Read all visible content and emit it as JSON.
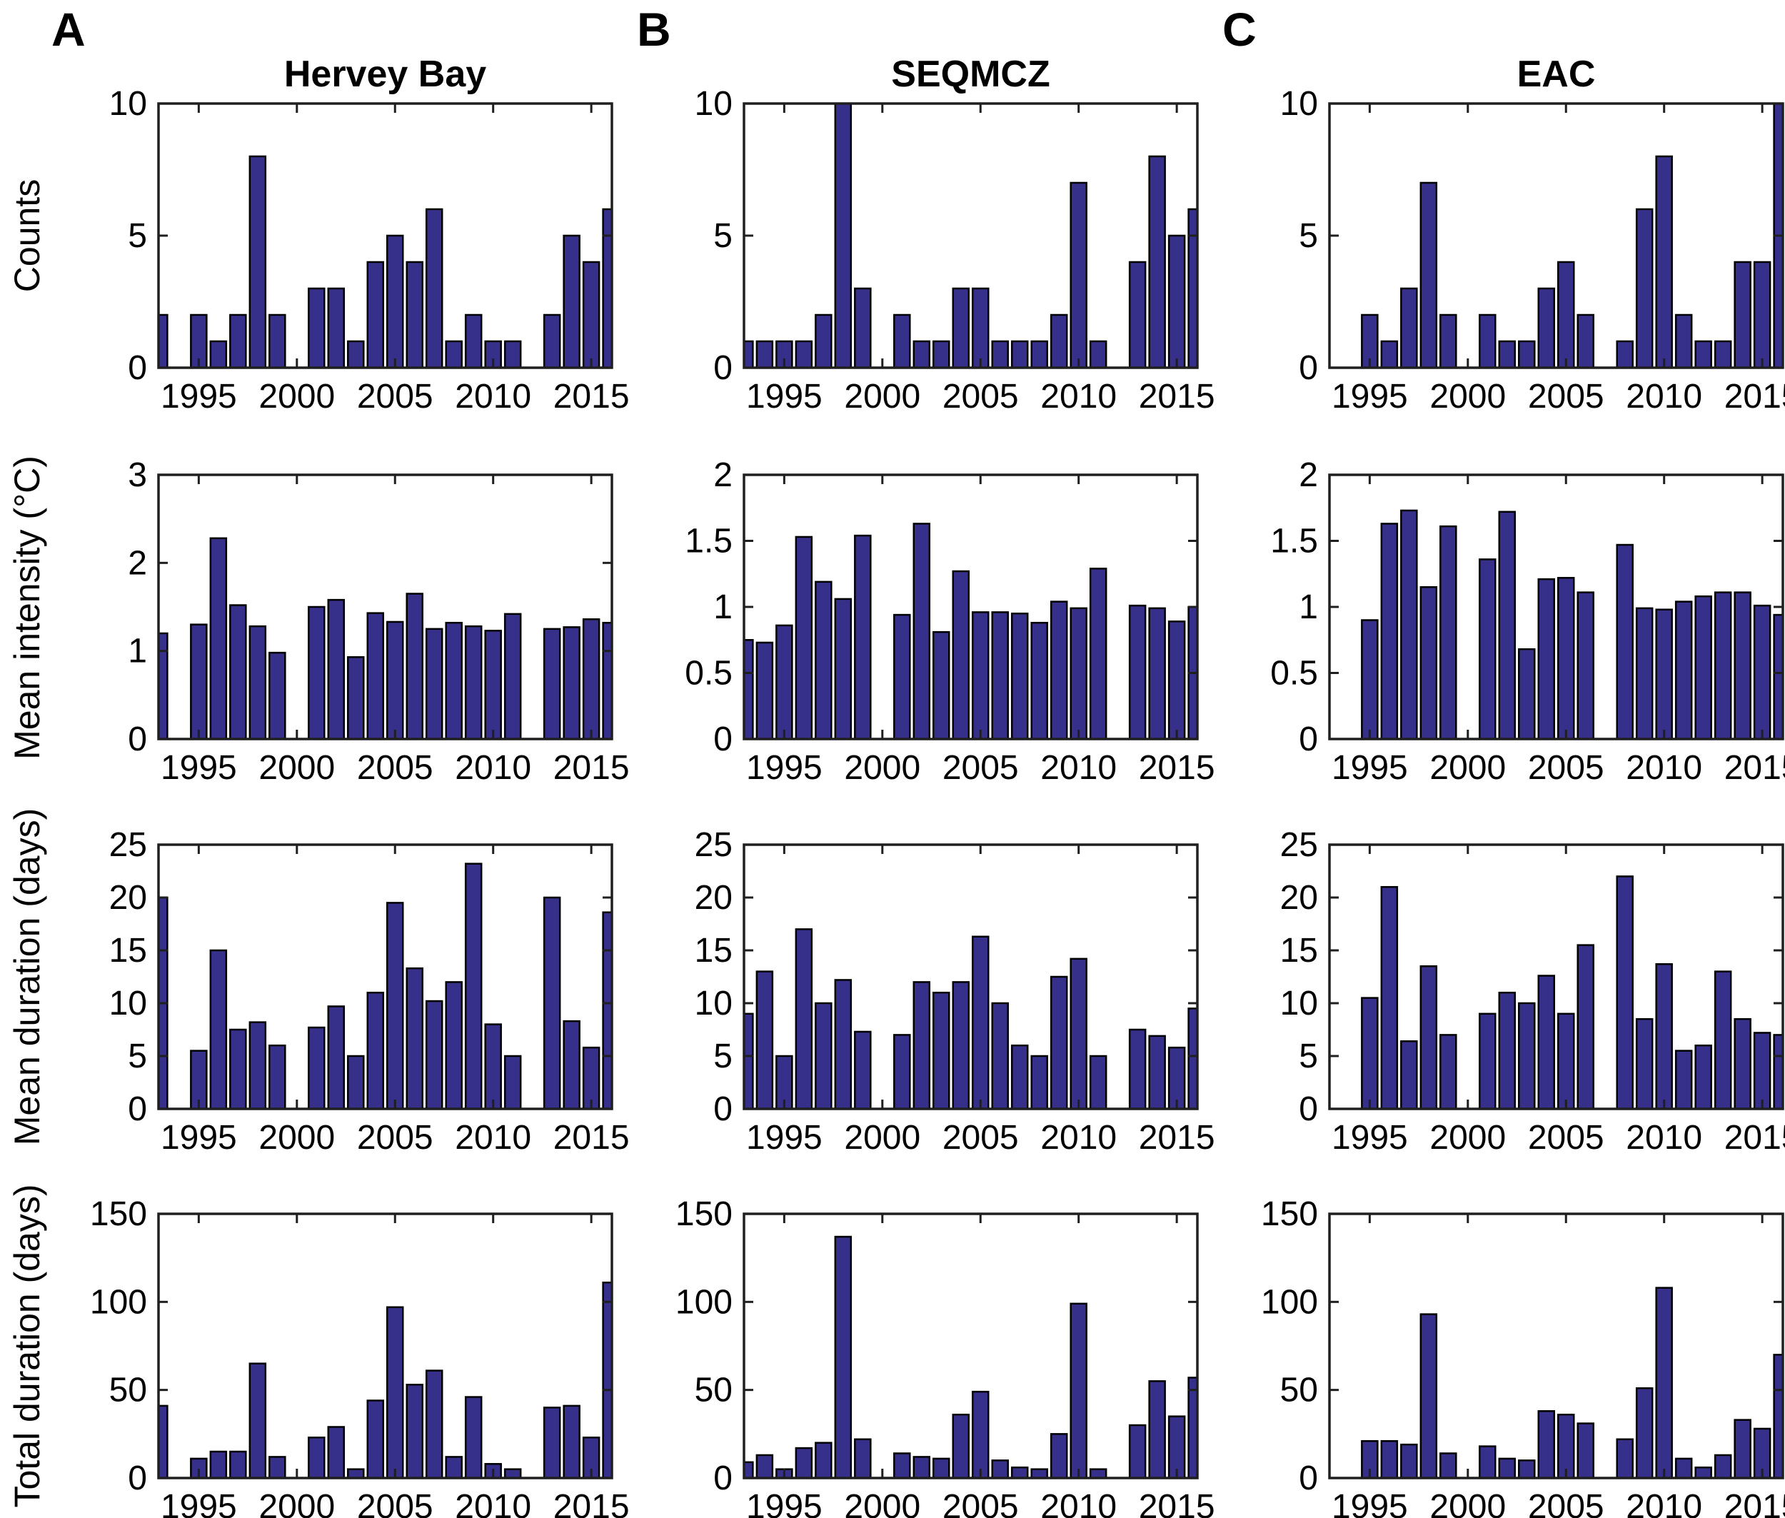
{
  "figure": {
    "panel_letters": [
      "A",
      "B",
      "C"
    ],
    "row_labels": [
      "Counts",
      "Mean intensity (°C)",
      "Mean duration (days)",
      "Total duration (days)"
    ],
    "column_titles": [
      "Hervey Bay",
      "SEQMCZ",
      "EAC"
    ],
    "bar_color": "#36308a",
    "bar_edge_color": "#000000",
    "axis_color": "#1f1f1f",
    "background": "#ffffff",
    "years": [
      1993,
      1994,
      1995,
      1996,
      1997,
      1998,
      1999,
      2000,
      2001,
      2002,
      2003,
      2004,
      2005,
      2006,
      2007,
      2008,
      2009,
      2010,
      2011,
      2012,
      2013,
      2014,
      2015,
      2016
    ],
    "xticks": [
      1995,
      2000,
      2005,
      2010,
      2015
    ],
    "xlim": [
      1992.95,
      2016.05
    ]
  },
  "chart_data": [
    {
      "type": "bar",
      "panel": "A",
      "location": "Hervey Bay",
      "metric": "Counts",
      "title": "Hervey Bay",
      "grid": {
        "row": 0,
        "col": 0
      },
      "ylim": [
        0,
        10
      ],
      "yticks": [
        0,
        5,
        10
      ],
      "values": [
        2,
        0,
        2,
        1,
        2,
        8,
        2,
        0,
        3,
        3,
        1,
        4,
        5,
        4,
        6,
        1,
        2,
        1,
        1,
        0,
        2,
        5,
        4,
        6
      ]
    },
    {
      "type": "bar",
      "panel": "B",
      "location": "SEQMCZ",
      "metric": "Counts",
      "title": "SEQMCZ",
      "grid": {
        "row": 0,
        "col": 1
      },
      "ylim": [
        0,
        10
      ],
      "yticks": [
        0,
        5,
        10
      ],
      "values": [
        1,
        1,
        1,
        1,
        2,
        10,
        3,
        0,
        2,
        1,
        1,
        3,
        3,
        1,
        1,
        1,
        2,
        7,
        1,
        0,
        4,
        8,
        5,
        6
      ]
    },
    {
      "type": "bar",
      "panel": "C",
      "location": "EAC",
      "metric": "Counts",
      "title": "EAC",
      "grid": {
        "row": 0,
        "col": 2
      },
      "ylim": [
        0,
        10
      ],
      "yticks": [
        0,
        5,
        10
      ],
      "values": [
        0,
        0,
        2,
        1,
        3,
        7,
        2,
        0,
        2,
        1,
        1,
        3,
        4,
        2,
        0,
        1,
        6,
        8,
        2,
        1,
        1,
        4,
        4,
        10
      ]
    },
    {
      "type": "bar",
      "panel": "A",
      "location": "Hervey Bay",
      "metric": "Mean intensity (°C)",
      "title": "",
      "grid": {
        "row": 1,
        "col": 0
      },
      "ylim": [
        0,
        3
      ],
      "yticks": [
        0,
        1,
        2,
        3
      ],
      "values": [
        1.2,
        0,
        1.3,
        2.28,
        1.52,
        1.28,
        0.98,
        0,
        1.5,
        1.58,
        0.93,
        1.43,
        1.33,
        1.65,
        1.25,
        1.32,
        1.28,
        1.23,
        1.42,
        0,
        1.25,
        1.27,
        1.36,
        1.32
      ]
    },
    {
      "type": "bar",
      "panel": "B",
      "location": "SEQMCZ",
      "metric": "Mean intensity (°C)",
      "title": "",
      "grid": {
        "row": 1,
        "col": 1
      },
      "ylim": [
        0,
        2
      ],
      "yticks": [
        0,
        0.5,
        1,
        1.5,
        2
      ],
      "values": [
        0.75,
        0.73,
        0.86,
        1.53,
        1.19,
        1.06,
        1.54,
        0,
        0.94,
        1.63,
        0.81,
        1.27,
        0.96,
        0.96,
        0.95,
        0.88,
        1.04,
        0.99,
        1.29,
        0,
        1.01,
        0.99,
        0.89,
        1.0
      ]
    },
    {
      "type": "bar",
      "panel": "C",
      "location": "EAC",
      "metric": "Mean intensity (°C)",
      "title": "",
      "grid": {
        "row": 1,
        "col": 2
      },
      "ylim": [
        0,
        2
      ],
      "yticks": [
        0,
        0.5,
        1,
        1.5,
        2
      ],
      "values": [
        0,
        0,
        0.9,
        1.63,
        1.73,
        1.15,
        1.61,
        0,
        1.36,
        1.72,
        0.68,
        1.21,
        1.22,
        1.11,
        0,
        1.47,
        0.99,
        0.98,
        1.04,
        1.08,
        1.11,
        1.11,
        1.01,
        0.94
      ]
    },
    {
      "type": "bar",
      "panel": "A",
      "location": "Hervey Bay",
      "metric": "Mean duration (days)",
      "title": "",
      "grid": {
        "row": 2,
        "col": 0
      },
      "ylim": [
        0,
        25
      ],
      "yticks": [
        0,
        5,
        10,
        15,
        20,
        25
      ],
      "values": [
        20,
        0,
        5.5,
        15,
        7.5,
        8.2,
        6,
        0,
        7.7,
        9.7,
        5,
        11,
        19.5,
        13.3,
        10.2,
        12,
        23.2,
        8,
        5,
        0,
        20,
        8.3,
        5.8,
        18.6
      ]
    },
    {
      "type": "bar",
      "panel": "B",
      "location": "SEQMCZ",
      "metric": "Mean duration (days)",
      "title": "",
      "grid": {
        "row": 2,
        "col": 1
      },
      "ylim": [
        0,
        25
      ],
      "yticks": [
        0,
        5,
        10,
        15,
        20,
        25
      ],
      "values": [
        9,
        13,
        5,
        17,
        10,
        12.2,
        7.3,
        0,
        7,
        12,
        11,
        12,
        16.3,
        10,
        6,
        5,
        12.5,
        14.2,
        5,
        0,
        7.5,
        6.9,
        5.8,
        9.5
      ]
    },
    {
      "type": "bar",
      "panel": "C",
      "location": "EAC",
      "metric": "Mean duration (days)",
      "title": "",
      "grid": {
        "row": 2,
        "col": 2
      },
      "ylim": [
        0,
        25
      ],
      "yticks": [
        0,
        5,
        10,
        15,
        20,
        25
      ],
      "values": [
        0,
        0,
        10.5,
        21,
        6.4,
        13.5,
        7,
        0,
        9,
        11,
        10,
        12.6,
        9,
        15.5,
        0,
        22,
        8.5,
        13.7,
        5.5,
        6,
        13,
        8.5,
        7.2,
        7
      ]
    },
    {
      "type": "bar",
      "panel": "A",
      "location": "Hervey Bay",
      "metric": "Total duration (days)",
      "title": "",
      "grid": {
        "row": 3,
        "col": 0
      },
      "ylim": [
        0,
        150
      ],
      "yticks": [
        0,
        50,
        100,
        150
      ],
      "values": [
        41,
        0,
        11,
        15,
        15,
        65,
        12,
        0,
        23,
        29,
        5,
        44,
        97,
        53,
        61,
        12,
        46,
        8,
        5,
        0,
        40,
        41,
        23,
        111
      ]
    },
    {
      "type": "bar",
      "panel": "B",
      "location": "SEQMCZ",
      "metric": "Total duration (days)",
      "title": "",
      "grid": {
        "row": 3,
        "col": 1
      },
      "ylim": [
        0,
        150
      ],
      "yticks": [
        0,
        50,
        100,
        150
      ],
      "values": [
        9,
        13,
        5,
        17,
        20,
        137,
        22,
        0,
        14,
        12,
        11,
        36,
        49,
        10,
        6,
        5,
        25,
        99,
        5,
        0,
        30,
        55,
        35,
        57
      ]
    },
    {
      "type": "bar",
      "panel": "C",
      "location": "EAC",
      "metric": "Total duration (days)",
      "title": "",
      "grid": {
        "row": 3,
        "col": 2
      },
      "ylim": [
        0,
        150
      ],
      "yticks": [
        0,
        50,
        100,
        150
      ],
      "values": [
        0,
        0,
        21,
        21,
        19,
        93,
        14,
        0,
        18,
        11,
        10,
        38,
        36,
        31,
        0,
        22,
        51,
        108,
        11,
        6,
        13,
        33,
        28,
        70
      ]
    }
  ]
}
